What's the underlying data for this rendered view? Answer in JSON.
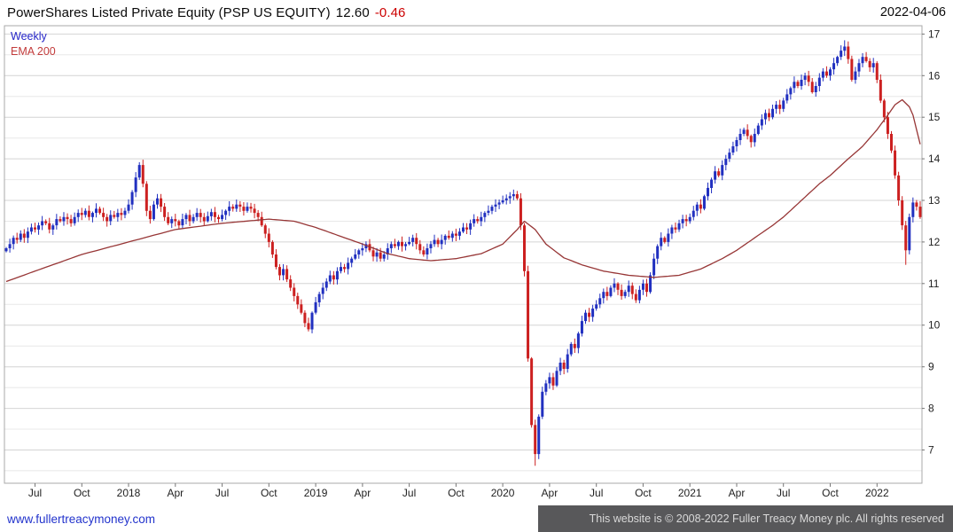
{
  "header": {
    "title": "PowerShares Listed Private Equity (PSP US EQUITY)",
    "last_price": "12.60",
    "change": "-0.46",
    "date": "2022-04-06"
  },
  "chart_labels": {
    "frequency": "Weekly",
    "overlay": "EMA 200"
  },
  "footer": {
    "link": "www.fullertreacymoney.com",
    "copyright": "This website is © 2008-2022 Fuller Treacy Money plc. All rights reserved"
  },
  "chart_data": {
    "type": "candlestick",
    "title": "PowerShares Listed Private Equity (PSP US EQUITY)",
    "frequency": "Weekly",
    "overlay": "EMA 200",
    "ylim": [
      6.2,
      17.2
    ],
    "y_ticks": [
      7,
      8,
      9,
      10,
      11,
      12,
      13,
      14,
      15,
      16,
      17
    ],
    "x_ticks": [
      {
        "week": 8,
        "label": "Jul"
      },
      {
        "week": 21,
        "label": "Oct"
      },
      {
        "week": 34,
        "label": "2018"
      },
      {
        "week": 47,
        "label": "Apr"
      },
      {
        "week": 60,
        "label": "Jul"
      },
      {
        "week": 73,
        "label": "Oct"
      },
      {
        "week": 86,
        "label": "2019"
      },
      {
        "week": 99,
        "label": "Apr"
      },
      {
        "week": 112,
        "label": "Jul"
      },
      {
        "week": 125,
        "label": "Oct"
      },
      {
        "week": 138,
        "label": "2020"
      },
      {
        "week": 151,
        "label": "Apr"
      },
      {
        "week": 164,
        "label": "Jul"
      },
      {
        "week": 177,
        "label": "Oct"
      },
      {
        "week": 190,
        "label": "2021"
      },
      {
        "week": 203,
        "label": "Apr"
      },
      {
        "week": 216,
        "label": "Jul"
      },
      {
        "week": 229,
        "label": "Oct"
      },
      {
        "week": 242,
        "label": "2022"
      }
    ],
    "first_open": 11.78,
    "weekly_closes": [
      11.85,
      11.95,
      12.1,
      12.05,
      12.2,
      12.1,
      12.25,
      12.35,
      12.3,
      12.4,
      12.5,
      12.45,
      12.3,
      12.4,
      12.55,
      12.5,
      12.6,
      12.55,
      12.45,
      12.6,
      12.7,
      12.65,
      12.75,
      12.6,
      12.7,
      12.8,
      12.7,
      12.6,
      12.5,
      12.65,
      12.6,
      12.7,
      12.65,
      12.75,
      12.9,
      13.2,
      13.55,
      13.85,
      13.4,
      12.75,
      12.55,
      12.9,
      13.05,
      12.85,
      12.6,
      12.45,
      12.55,
      12.5,
      12.4,
      12.55,
      12.65,
      12.5,
      12.6,
      12.7,
      12.6,
      12.5,
      12.62,
      12.72,
      12.6,
      12.55,
      12.65,
      12.75,
      12.85,
      12.8,
      12.9,
      12.85,
      12.75,
      12.85,
      12.8,
      12.7,
      12.6,
      12.4,
      12.2,
      12.0,
      11.7,
      11.4,
      11.2,
      11.35,
      11.1,
      10.9,
      10.7,
      10.5,
      10.3,
      10.05,
      9.9,
      10.3,
      10.55,
      10.75,
      10.9,
      11.05,
      11.2,
      11.1,
      11.3,
      11.4,
      11.35,
      11.5,
      11.6,
      11.7,
      11.8,
      11.85,
      11.95,
      11.8,
      11.65,
      11.75,
      11.6,
      11.7,
      11.85,
      11.95,
      11.9,
      12.0,
      11.9,
      11.95,
      12.0,
      12.1,
      11.95,
      11.8,
      11.7,
      11.85,
      11.95,
      12.05,
      11.95,
      12.05,
      12.15,
      12.1,
      12.2,
      12.15,
      12.25,
      12.35,
      12.3,
      12.45,
      12.55,
      12.5,
      12.6,
      12.7,
      12.75,
      12.85,
      12.9,
      12.95,
      13.0,
      13.05,
      13.1,
      13.15,
      13.05,
      12.4,
      11.3,
      9.2,
      7.6,
      6.9,
      7.8,
      8.4,
      8.6,
      8.75,
      8.55,
      8.9,
      9.1,
      8.95,
      9.3,
      9.55,
      9.45,
      9.8,
      10.1,
      10.3,
      10.2,
      10.4,
      10.5,
      10.65,
      10.8,
      10.7,
      10.9,
      11.0,
      10.85,
      10.7,
      10.8,
      10.95,
      10.75,
      10.6,
      10.85,
      11.0,
      10.8,
      11.2,
      11.6,
      11.9,
      12.1,
      12.0,
      12.2,
      12.35,
      12.3,
      12.45,
      12.55,
      12.5,
      12.6,
      12.75,
      12.9,
      12.8,
      13.1,
      13.3,
      13.5,
      13.7,
      13.6,
      13.85,
      14.0,
      14.15,
      14.3,
      14.45,
      14.6,
      14.7,
      14.55,
      14.4,
      14.6,
      14.8,
      14.95,
      15.1,
      15.0,
      15.2,
      15.3,
      15.2,
      15.4,
      15.55,
      15.7,
      15.85,
      15.75,
      15.9,
      16.0,
      15.85,
      15.6,
      15.75,
      15.95,
      16.1,
      16.0,
      16.15,
      16.3,
      16.45,
      16.6,
      16.7,
      16.4,
      15.9,
      16.1,
      16.3,
      16.45,
      16.35,
      16.2,
      16.3,
      15.9,
      15.4,
      15.0,
      14.6,
      14.2,
      13.6,
      13.0,
      12.4,
      11.8,
      12.6,
      12.95,
      12.85,
      12.6
    ],
    "extremes": [
      {
        "week": 37,
        "high": 13.92
      },
      {
        "week": 84,
        "low": 9.85
      },
      {
        "week": 147,
        "low": 6.62
      },
      {
        "week": 233,
        "high": 16.85
      },
      {
        "week": 250,
        "low": 11.45
      }
    ],
    "ema_points": [
      [
        0,
        11.05
      ],
      [
        8,
        11.3
      ],
      [
        21,
        11.7
      ],
      [
        34,
        12.0
      ],
      [
        47,
        12.3
      ],
      [
        60,
        12.45
      ],
      [
        73,
        12.55
      ],
      [
        80,
        12.5
      ],
      [
        86,
        12.35
      ],
      [
        99,
        11.95
      ],
      [
        106,
        11.72
      ],
      [
        112,
        11.6
      ],
      [
        118,
        11.55
      ],
      [
        125,
        11.6
      ],
      [
        132,
        11.72
      ],
      [
        138,
        11.95
      ],
      [
        142,
        12.3
      ],
      [
        144,
        12.5
      ],
      [
        147,
        12.3
      ],
      [
        150,
        11.95
      ],
      [
        155,
        11.62
      ],
      [
        160,
        11.45
      ],
      [
        166,
        11.3
      ],
      [
        173,
        11.2
      ],
      [
        180,
        11.15
      ],
      [
        187,
        11.2
      ],
      [
        193,
        11.35
      ],
      [
        199,
        11.6
      ],
      [
        203,
        11.8
      ],
      [
        208,
        12.1
      ],
      [
        213,
        12.4
      ],
      [
        216,
        12.6
      ],
      [
        221,
        13.0
      ],
      [
        226,
        13.4
      ],
      [
        229,
        13.6
      ],
      [
        234,
        14.0
      ],
      [
        238,
        14.3
      ],
      [
        242,
        14.7
      ],
      [
        245,
        15.05
      ],
      [
        247,
        15.3
      ],
      [
        249,
        15.42
      ],
      [
        251,
        15.25
      ],
      [
        252,
        15.05
      ],
      [
        253,
        14.7
      ],
      [
        254,
        14.35
      ]
    ],
    "last_price": 12.6,
    "change": -0.46,
    "colors": {
      "up": "#2130c0",
      "down": "#cc2020",
      "ema": "#973636",
      "grid_major": "#d4d4d4",
      "grid_minor": "#e8e8e8",
      "border": "#a9a9a9",
      "axis_text": "#222222"
    },
    "legend_position": "top-left",
    "grid": true
  }
}
